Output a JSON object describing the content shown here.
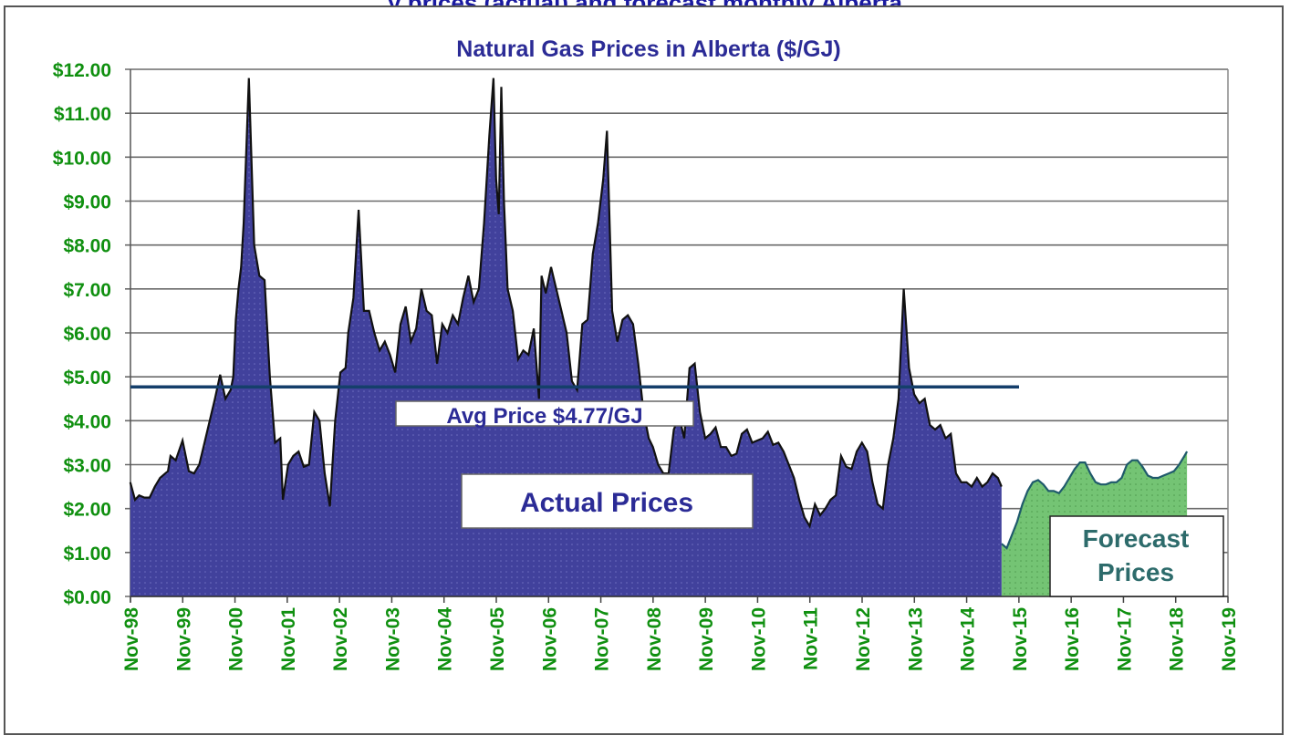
{
  "page": {
    "top_cut_text": "...y prices (actual) and forecast monthly Alberta..."
  },
  "chart_data": {
    "type": "area",
    "title": "Natural Gas Prices in Alberta ($/GJ)",
    "xlabel": "",
    "ylabel": "",
    "ylim": [
      0,
      12
    ],
    "y_ticks": [
      "$0.00",
      "$1.00",
      "$2.00",
      "$3.00",
      "$4.00",
      "$5.00",
      "$6.00",
      "$7.00",
      "$8.00",
      "$9.00",
      "$10.00",
      "$11.00",
      "$12.00"
    ],
    "x_ticks": [
      "Nov-98",
      "Nov-99",
      "Nov-00",
      "Nov-01",
      "Nov-02",
      "Nov-03",
      "Nov-04",
      "Nov-05",
      "Nov-06",
      "Nov-07",
      "Nov-08",
      "Nov-09",
      "Nov-10",
      "Nov-11",
      "Nov-12",
      "Nov-13",
      "Nov-14",
      "Nov-15",
      "Nov-16",
      "Nov-17",
      "Nov-18",
      "Nov-19"
    ],
    "grid": true,
    "legend_position": "none",
    "annotations": [
      {
        "text": "Avg Price $4.77/GJ",
        "type": "hline",
        "value": 4.77,
        "x_start": "Nov-98",
        "x_end": "Nov-15"
      },
      {
        "text": "Actual Prices",
        "type": "label"
      },
      {
        "text": "Forecast Prices",
        "type": "label"
      }
    ],
    "colors": {
      "actual": "#3f3f9c",
      "forecast": "#72c472",
      "avg_line": "#153f6b",
      "tick_text": "#109010",
      "title_text": "#2b2b96"
    },
    "series": [
      {
        "name": "Actual Prices",
        "x_year": [
          1998.83,
          1998.92,
          1999.0,
          1999.1,
          1999.2,
          1999.3,
          1999.4,
          1999.5,
          1999.55,
          1999.6,
          1999.7,
          1999.83,
          1999.95,
          2000.05,
          2000.15,
          2000.25,
          2000.35,
          2000.45,
          2000.55,
          2000.65,
          2000.75,
          2000.8,
          2000.85,
          2000.9,
          2000.95,
          2001.0,
          2001.1,
          2001.2,
          2001.3,
          2001.4,
          2001.5,
          2001.6,
          2001.7,
          2001.75,
          2001.85,
          2001.95,
          2002.05,
          2002.15,
          2002.25,
          2002.35,
          2002.45,
          2002.55,
          2002.65,
          2002.75,
          2002.85,
          2002.95,
          2003.0,
          2003.1,
          2003.2,
          2003.3,
          2003.4,
          2003.5,
          2003.6,
          2003.7,
          2003.8,
          2003.9,
          2004.0,
          2004.1,
          2004.2,
          2004.3,
          2004.4,
          2004.5,
          2004.6,
          2004.7,
          2004.8,
          2004.9,
          2005.0,
          2005.1,
          2005.2,
          2005.3,
          2005.4,
          2005.5,
          2005.6,
          2005.7,
          2005.78,
          2005.83,
          2005.88,
          2005.93,
          2005.98,
          2006.05,
          2006.15,
          2006.25,
          2006.35,
          2006.45,
          2006.55,
          2006.65,
          2006.7,
          2006.78,
          2006.88,
          2006.98,
          2007.08,
          2007.18,
          2007.28,
          2007.38,
          2007.48,
          2007.58,
          2007.68,
          2007.78,
          2007.88,
          2007.95,
          2008.05,
          2008.15,
          2008.25,
          2008.35,
          2008.45,
          2008.55,
          2008.65,
          2008.75,
          2008.83,
          2008.93,
          2009.03,
          2009.13,
          2009.23,
          2009.33,
          2009.43,
          2009.53,
          2009.63,
          2009.73,
          2009.83,
          2009.93,
          2010.03,
          2010.13,
          2010.23,
          2010.33,
          2010.43,
          2010.53,
          2010.63,
          2010.73,
          2010.83,
          2010.93,
          2011.03,
          2011.13,
          2011.23,
          2011.33,
          2011.43,
          2011.53,
          2011.63,
          2011.73,
          2011.83,
          2011.93,
          2012.03,
          2012.13,
          2012.23,
          2012.33,
          2012.43,
          2012.53,
          2012.63,
          2012.73,
          2012.83,
          2012.93,
          2013.03,
          2013.13,
          2013.23,
          2013.33,
          2013.43,
          2013.53,
          2013.63,
          2013.73,
          2013.83,
          2013.93,
          2014.03,
          2014.13,
          2014.23,
          2014.33,
          2014.43,
          2014.53,
          2014.63,
          2014.73,
          2014.83,
          2014.93,
          2015.03,
          2015.13,
          2015.23,
          2015.33,
          2015.43,
          2015.5
        ],
        "values": [
          2.6,
          2.2,
          2.3,
          2.25,
          2.25,
          2.5,
          2.7,
          2.8,
          2.85,
          3.2,
          3.1,
          3.55,
          2.85,
          2.8,
          3.0,
          3.5,
          4.0,
          4.5,
          5.05,
          4.5,
          4.7,
          5.0,
          6.3,
          7.0,
          7.5,
          8.5,
          11.8,
          8.0,
          7.3,
          7.2,
          5.0,
          3.5,
          3.6,
          2.2,
          3.0,
          3.2,
          3.3,
          2.95,
          3.0,
          4.2,
          4.0,
          2.8,
          2.05,
          4.0,
          5.1,
          5.2,
          6.0,
          6.8,
          8.8,
          6.5,
          6.5,
          6.0,
          5.6,
          5.8,
          5.5,
          5.1,
          6.2,
          6.6,
          5.8,
          6.1,
          7.0,
          6.5,
          6.4,
          5.3,
          6.2,
          6.0,
          6.4,
          6.2,
          6.8,
          7.3,
          6.7,
          7.0,
          8.5,
          10.5,
          11.8,
          9.5,
          8.7,
          11.6,
          9.0,
          7.0,
          6.5,
          5.4,
          5.6,
          5.5,
          6.1,
          4.5,
          7.3,
          6.9,
          7.5,
          7.0,
          6.5,
          6.0,
          4.9,
          4.7,
          6.2,
          6.3,
          7.8,
          8.5,
          9.5,
          10.6,
          6.5,
          5.8,
          6.3,
          6.4,
          6.2,
          5.3,
          4.2,
          3.6,
          3.4,
          3.0,
          2.8,
          2.8,
          3.8,
          4.1,
          3.6,
          5.2,
          5.3,
          4.2,
          3.6,
          3.7,
          3.85,
          3.4,
          3.4,
          3.2,
          3.25,
          3.7,
          3.8,
          3.5,
          3.55,
          3.6,
          3.75,
          3.45,
          3.5,
          3.3,
          3.0,
          2.7,
          2.2,
          1.8,
          1.6,
          2.1,
          1.85,
          2.0,
          2.2,
          2.3,
          3.2,
          2.95,
          2.9,
          3.3,
          3.5,
          3.3,
          2.6,
          2.1,
          2.0,
          3.0,
          3.6,
          4.5,
          7.0,
          5.2,
          4.6,
          4.4,
          4.5,
          3.9,
          3.8,
          3.9,
          3.6,
          3.7,
          2.8,
          2.6,
          2.6,
          2.5,
          2.7,
          2.5,
          2.6,
          2.8,
          2.7,
          2.5,
          2.5,
          2.3,
          2.25,
          2.1,
          1.2
        ]
      },
      {
        "name": "Forecast Prices",
        "x_year": [
          2015.5,
          2015.6,
          2015.7,
          2015.8,
          2015.9,
          2016.0,
          2016.1,
          2016.2,
          2016.3,
          2016.4,
          2016.5,
          2016.6,
          2016.7,
          2016.8,
          2016.9,
          2017.0,
          2017.1,
          2017.2,
          2017.3,
          2017.4,
          2017.5,
          2017.6,
          2017.7,
          2017.8,
          2017.9,
          2018.0,
          2018.1,
          2018.2,
          2018.3,
          2018.4,
          2018.5,
          2018.6,
          2018.7,
          2018.8,
          2018.9,
          2019.0,
          2019.05
        ],
        "values": [
          1.2,
          1.1,
          1.4,
          1.7,
          2.1,
          2.4,
          2.6,
          2.65,
          2.55,
          2.4,
          2.4,
          2.35,
          2.5,
          2.7,
          2.9,
          3.05,
          3.05,
          2.8,
          2.6,
          2.55,
          2.55,
          2.6,
          2.6,
          2.7,
          3.0,
          3.1,
          3.1,
          2.95,
          2.75,
          2.7,
          2.7,
          2.75,
          2.8,
          2.85,
          3.0,
          3.2,
          3.3
        ]
      }
    ]
  }
}
